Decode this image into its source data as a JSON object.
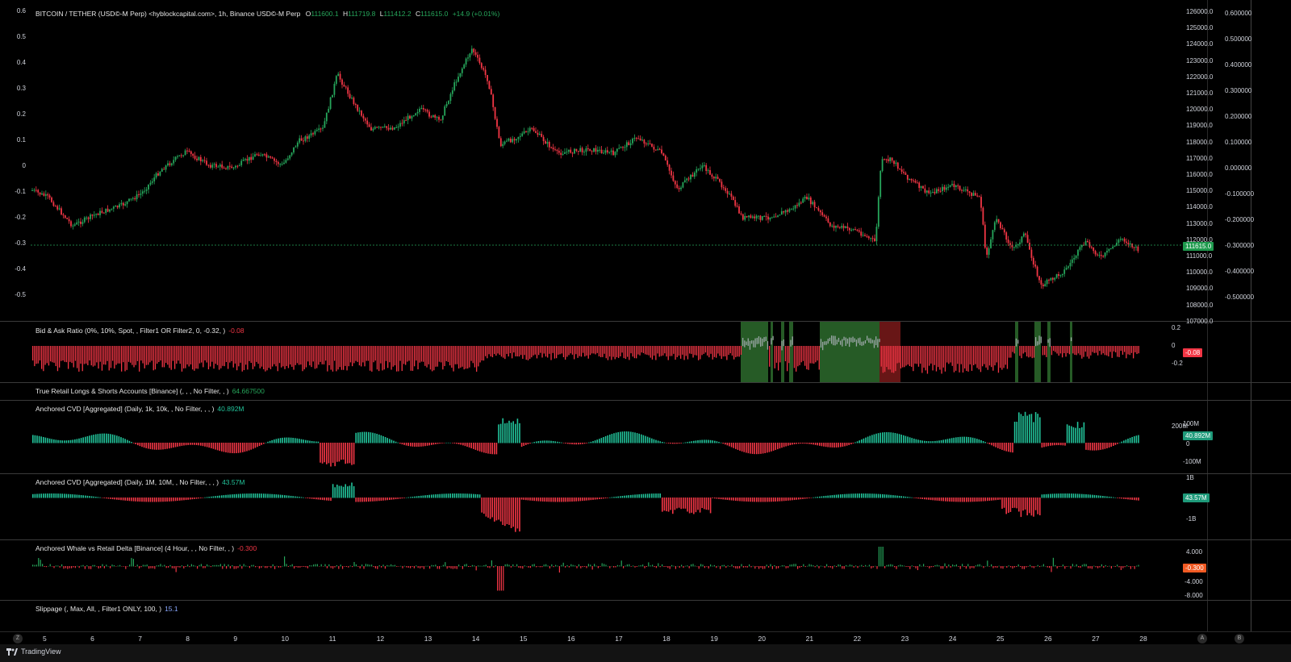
{
  "symbol": {
    "title": "BITCOIN / TETHER (USD©-M Perp) <hyblockcapital.com>, 1h, Binance USD©-M Perp",
    "o_label": "O",
    "o_value": "111600.1",
    "h_label": "H",
    "h_value": "111719.8",
    "l_label": "L",
    "l_value": "111412.2",
    "c_label": "C",
    "c_value": "111615.0",
    "change": "+14.9 (+0.01%)"
  },
  "price_badge": "111615.0",
  "price_axis": [
    "126000.0",
    "125000.0",
    "124000.0",
    "123000.0",
    "122000.0",
    "121000.0",
    "120000.0",
    "119000.0",
    "118000.0",
    "117000.0",
    "116000.0",
    "115000.0",
    "114000.0",
    "113000.0",
    "112000.0",
    "111000.0",
    "110000.0",
    "109000.0",
    "108000.0",
    "107000.0"
  ],
  "left_axis": [
    "0.6",
    "0.5",
    "0.4",
    "0.3",
    "0.2",
    "0.1",
    "0",
    "-0.1",
    "-0.2",
    "-0.3",
    "-0.4",
    "-0.5"
  ],
  "far_right_axis": [
    "0.600000",
    "0.500000",
    "0.400000",
    "0.300000",
    "0.200000",
    "0.100000",
    "0.000000",
    "-0.100000",
    "-0.200000",
    "-0.300000",
    "-0.400000",
    "-0.500000"
  ],
  "panes": {
    "bid_ask": {
      "label": "Bid & Ask Ratio (0%, 10%, Spot, , Filter1 OR Filter2, 0, -0.32, )",
      "value": "-0.08",
      "axis": [
        "0.2",
        "0",
        "-0.2"
      ],
      "badge": "-0.08"
    },
    "retail": {
      "label": "True Retail Longs & Shorts Accounts [Binance] (, , , No Filter, , )",
      "value": "64.667500"
    },
    "cvd1": {
      "label": "Anchored CVD [Aggregated] (Daily, 1k, 10k, , No Filter, , , )",
      "value": "40.892M",
      "axis": [
        "200M",
        "100M",
        "0",
        "-100M"
      ],
      "badge": "40.892M"
    },
    "cvd2": {
      "label": "Anchored CVD [Aggregated] (Daily, 1M, 10M, , No Filter, , , )",
      "value": "43.57M",
      "axis": [
        "1B",
        "-1B"
      ],
      "badge": "43.57M"
    },
    "whale": {
      "label": "Anchored Whale vs Retail Delta [Binance] (4 Hour, , , No Filter, , )",
      "value": "-0.300",
      "axis": [
        "4.000",
        "-4.000",
        "-8.000"
      ],
      "badge": "-0.300"
    },
    "slippage": {
      "label": "Slippage (, Max, All, , Filter1 ONLY, 100, )",
      "value": "15.1"
    }
  },
  "x_axis": [
    "5",
    "6",
    "7",
    "8",
    "9",
    "10",
    "11",
    "12",
    "13",
    "14",
    "15",
    "16",
    "17",
    "18",
    "19",
    "20",
    "21",
    "22",
    "23",
    "24",
    "25",
    "26",
    "27",
    "28"
  ],
  "footer": {
    "brand": "TradingView",
    "btn_z": "Z",
    "btn_a": "A",
    "btn_b": "B"
  },
  "colors": {
    "up": "#26a65b",
    "down": "#f23645",
    "teal": "#22c39a",
    "badge_green": "#1e9a4d",
    "badge_red": "#f23645",
    "zone_green": "#2d6b2d"
  }
}
